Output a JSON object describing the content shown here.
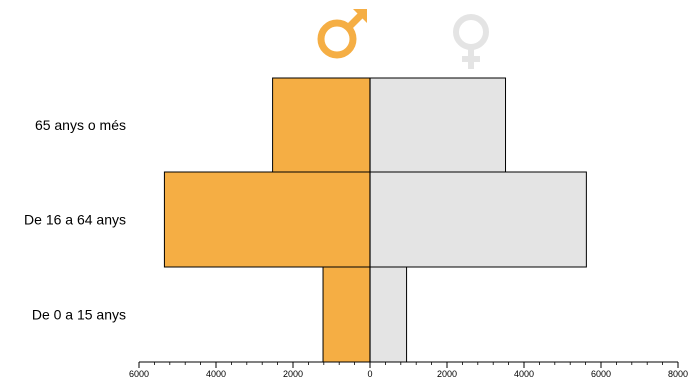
{
  "chart_data": {
    "type": "bar",
    "orientation": "horizontal",
    "categories": [
      "65 anys o més",
      "De 16 a 64 anys",
      "De 0 a 15 anys"
    ],
    "series": [
      {
        "symbol": "male-symbol",
        "color": "#F5AE44",
        "side": "left",
        "values": [
          2530,
          5340,
          1220
        ]
      },
      {
        "symbol": "female-symbol",
        "color": "#E4E4E4",
        "side": "right",
        "values": [
          3520,
          5620,
          950
        ]
      }
    ],
    "x_ticks": [
      "6000",
      "4000",
      "2000",
      "0",
      "2000",
      "4000",
      "6000",
      "8000"
    ],
    "x_range": [
      -6000,
      8000
    ],
    "minor_tick_step": 400,
    "grid": false,
    "legend": "male and female symbols above the bars"
  }
}
